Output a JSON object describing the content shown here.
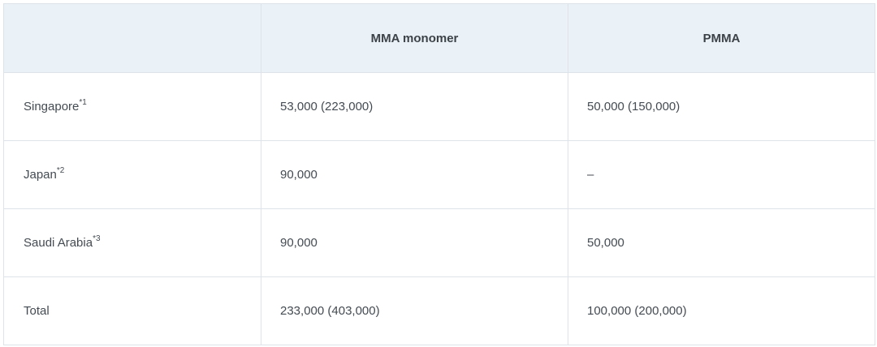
{
  "table": {
    "headers": [
      "",
      "MMA monomer",
      "PMMA"
    ],
    "rows": [
      {
        "country": "Singapore",
        "note": "*1",
        "mma": "53,000 (223,000)",
        "pmma": "50,000 (150,000)"
      },
      {
        "country": "Japan",
        "note": "*2",
        "mma": "90,000",
        "pmma": "–"
      },
      {
        "country": "Saudi Arabia",
        "note": "*3",
        "mma": "90,000",
        "pmma": "50,000"
      },
      {
        "country": "Total",
        "note": "",
        "mma": "233,000 (403,000)",
        "pmma": "100,000 (200,000)"
      }
    ]
  },
  "colors": {
    "header_bg": "#eaf2f7",
    "border": "#dde3e8",
    "text": "#444b52"
  }
}
